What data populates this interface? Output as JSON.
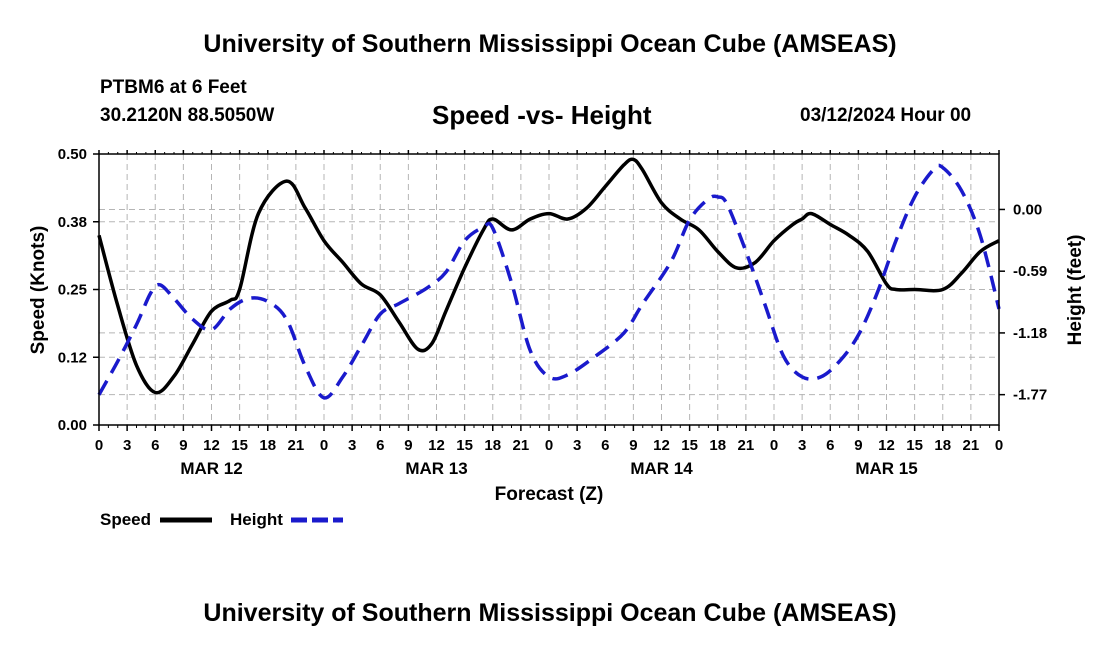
{
  "header": {
    "title": "University of Southern Mississippi Ocean Cube (AMSEAS)",
    "station": "PTBM6 at 6 Feet",
    "coords": "30.2120N  88.5050W",
    "run_date": "03/12/2024 Hour 00"
  },
  "footer": {
    "title": "University of Southern Mississippi Ocean Cube (AMSEAS)"
  },
  "chart_data": {
    "type": "line",
    "title": "Speed -vs- Height",
    "xlabel": "Forecast (Z)",
    "ylabel_left": "Speed (Knots)",
    "ylabel_right": "Height (feet)",
    "x_range_hours": [
      0,
      96
    ],
    "y_left_range": [
      0,
      0.5
    ],
    "y_right_range": [
      -2.06,
      0.53
    ],
    "y_left_ticks": [
      "0.00",
      "0.12",
      "0.25",
      "0.38",
      "0.50"
    ],
    "y_left_tick_values": [
      0,
      0.125,
      0.25,
      0.375,
      0.5
    ],
    "y_right_ticks": [
      "0.00",
      "-0.59",
      "-1.18",
      "-1.77"
    ],
    "y_right_tick_values": [
      0,
      -0.59,
      -1.18,
      -1.77
    ],
    "x_tick_labels": [
      "0",
      "3",
      "6",
      "9",
      "12",
      "15",
      "18",
      "21",
      "0",
      "3",
      "6",
      "9",
      "12",
      "15",
      "18",
      "21",
      "0",
      "3",
      "6",
      "9",
      "12",
      "15",
      "18",
      "21",
      "0",
      "3",
      "6",
      "9",
      "12",
      "15",
      "18",
      "21",
      "0"
    ],
    "x_tick_step_hours": 3,
    "day_labels": [
      {
        "label": "MAR 12",
        "hour": 12
      },
      {
        "label": "MAR 13",
        "hour": 36
      },
      {
        "label": "MAR 14",
        "hour": 60
      },
      {
        "label": "MAR 15",
        "hour": 84
      }
    ],
    "grid": true,
    "legend": [
      {
        "name": "Speed",
        "color": "#000000",
        "style": "solid"
      },
      {
        "name": "Height",
        "color": "#1a1acc",
        "style": "dashed"
      }
    ],
    "series": [
      {
        "name": "Speed",
        "axis": "left",
        "color": "#000000",
        "style": "solid",
        "points": [
          [
            0,
            0.35
          ],
          [
            2,
            0.22
          ],
          [
            4,
            0.11
          ],
          [
            6,
            0.06
          ],
          [
            8,
            0.09
          ],
          [
            10,
            0.15
          ],
          [
            12,
            0.21
          ],
          [
            14,
            0.23
          ],
          [
            15,
            0.25
          ],
          [
            17,
            0.39
          ],
          [
            20,
            0.45
          ],
          [
            22,
            0.4
          ],
          [
            24,
            0.34
          ],
          [
            26,
            0.3
          ],
          [
            28,
            0.26
          ],
          [
            30,
            0.24
          ],
          [
            32,
            0.19
          ],
          [
            34,
            0.14
          ],
          [
            35.5,
            0.15
          ],
          [
            37,
            0.21
          ],
          [
            39,
            0.29
          ],
          [
            41,
            0.36
          ],
          [
            42,
            0.38
          ],
          [
            44,
            0.36
          ],
          [
            46,
            0.38
          ],
          [
            48,
            0.39
          ],
          [
            50,
            0.38
          ],
          [
            52,
            0.4
          ],
          [
            54,
            0.44
          ],
          [
            56,
            0.48
          ],
          [
            57,
            0.49
          ],
          [
            58,
            0.47
          ],
          [
            60,
            0.41
          ],
          [
            62,
            0.38
          ],
          [
            64,
            0.36
          ],
          [
            66,
            0.32
          ],
          [
            68,
            0.29
          ],
          [
            70,
            0.3
          ],
          [
            72,
            0.34
          ],
          [
            74,
            0.37
          ],
          [
            75,
            0.38
          ],
          [
            76,
            0.39
          ],
          [
            78,
            0.37
          ],
          [
            80,
            0.35
          ],
          [
            82,
            0.32
          ],
          [
            84,
            0.26
          ],
          [
            85,
            0.25
          ],
          [
            87,
            0.25
          ],
          [
            90,
            0.25
          ],
          [
            92,
            0.28
          ],
          [
            94,
            0.32
          ],
          [
            96,
            0.34
          ]
        ]
      },
      {
        "name": "Height",
        "axis": "right",
        "color": "#1a1acc",
        "style": "dashed",
        "points": [
          [
            0,
            -1.77
          ],
          [
            2,
            -1.45
          ],
          [
            4,
            -1.1
          ],
          [
            5.5,
            -0.8
          ],
          [
            6.5,
            -0.72
          ],
          [
            8,
            -0.85
          ],
          [
            10,
            -1.05
          ],
          [
            12,
            -1.15
          ],
          [
            14,
            -0.95
          ],
          [
            16,
            -0.85
          ],
          [
            18,
            -0.88
          ],
          [
            20,
            -1.05
          ],
          [
            22,
            -1.5
          ],
          [
            24,
            -1.8
          ],
          [
            26,
            -1.6
          ],
          [
            28,
            -1.3
          ],
          [
            30,
            -1.0
          ],
          [
            32,
            -0.9
          ],
          [
            35,
            -0.75
          ],
          [
            37,
            -0.6
          ],
          [
            39,
            -0.3
          ],
          [
            41,
            -0.17
          ],
          [
            42,
            -0.18
          ],
          [
            44,
            -0.7
          ],
          [
            46,
            -1.35
          ],
          [
            48,
            -1.6
          ],
          [
            50,
            -1.58
          ],
          [
            53,
            -1.4
          ],
          [
            56,
            -1.18
          ],
          [
            58,
            -0.9
          ],
          [
            61,
            -0.5
          ],
          [
            63,
            -0.1
          ],
          [
            65,
            0.1
          ],
          [
            66,
            0.12
          ],
          [
            67,
            0.05
          ],
          [
            69,
            -0.4
          ],
          [
            71,
            -0.9
          ],
          [
            73,
            -1.4
          ],
          [
            75,
            -1.6
          ],
          [
            77,
            -1.6
          ],
          [
            79,
            -1.45
          ],
          [
            81,
            -1.2
          ],
          [
            83,
            -0.8
          ],
          [
            85,
            -0.3
          ],
          [
            87,
            0.12
          ],
          [
            89,
            0.38
          ],
          [
            90,
            0.4
          ],
          [
            92,
            0.18
          ],
          [
            94,
            -0.25
          ],
          [
            96,
            -0.95
          ]
        ]
      }
    ]
  }
}
